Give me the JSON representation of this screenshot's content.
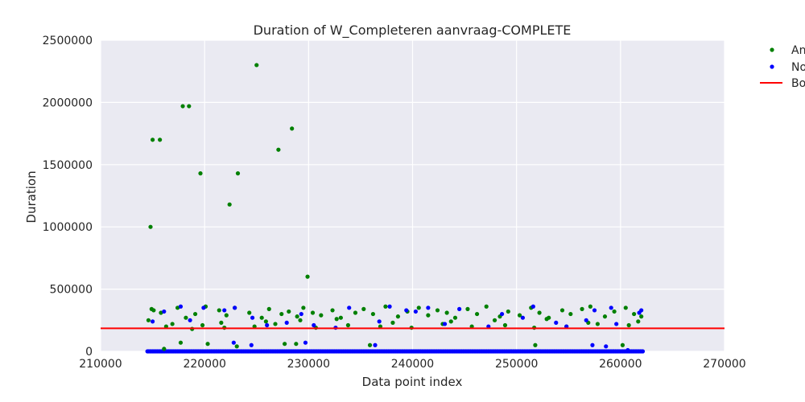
{
  "chart_data": {
    "type": "scatter",
    "title": "Duration of W_Completeren aanvraag-COMPLETE",
    "xlabel": "Data point index",
    "ylabel": "Duration",
    "xlim": [
      210000,
      270000
    ],
    "ylim": [
      0,
      2500000
    ],
    "xticks": [
      210000,
      220000,
      230000,
      240000,
      250000,
      260000,
      270000
    ],
    "yticks": [
      0,
      500000,
      1000000,
      1500000,
      2000000,
      2500000
    ],
    "xtick_labels": [
      "210000",
      "220000",
      "230000",
      "240000",
      "250000",
      "260000",
      "270000"
    ],
    "ytick_labels": [
      "0",
      "500000",
      "1000000",
      "1500000",
      "2000000",
      "2500000"
    ],
    "grid": true,
    "background": "#eaeaf2",
    "legend_position": "outside-right",
    "legend": [
      "An",
      "No",
      "Bo"
    ],
    "series": [
      {
        "name": "An",
        "color": "#008000",
        "marker": "point",
        "x": [
          214800,
          215000,
          215700,
          214900,
          217900,
          218500,
          219600,
          223200,
          222400,
          225000,
          227100,
          228400,
          229900,
          215100,
          215800,
          214600,
          216900,
          217400,
          218200,
          219100,
          220100,
          221400,
          222100,
          222900,
          224300,
          225500,
          226200,
          227400,
          228100,
          228900,
          229500,
          230400,
          231200,
          232300,
          233100,
          234500,
          235300,
          236200,
          237400,
          238600,
          239500,
          240600,
          241500,
          242400,
          243300,
          244100,
          245300,
          246200,
          247100,
          248400,
          249200,
          250300,
          251400,
          252200,
          253100,
          254400,
          255200,
          256300,
          257100,
          258500,
          259400,
          260500,
          261300,
          262000,
          216300,
          219800,
          221900,
          224800,
          226800,
          230700,
          233800,
          236900,
          239900,
          242900,
          245700,
          248900,
          251700,
          254800,
          257800,
          260800,
          217700,
          220300,
          223100,
          227700,
          228800,
          235900,
          251800,
          260200,
          216100,
          218800,
          221600,
          225900,
          229200,
          232700,
          238100,
          243700,
          247900,
          252900,
          256900,
          261700
        ],
        "y": [
          1000000,
          1700000,
          1700000,
          340000,
          1970000,
          1970000,
          1430000,
          1430000,
          1180000,
          2300000,
          1620000,
          1790000,
          600000,
          330000,
          310000,
          250000,
          220000,
          350000,
          270000,
          300000,
          360000,
          330000,
          290000,
          350000,
          310000,
          270000,
          340000,
          300000,
          320000,
          280000,
          350000,
          310000,
          290000,
          330000,
          270000,
          310000,
          340000,
          300000,
          360000,
          280000,
          320000,
          350000,
          290000,
          330000,
          310000,
          270000,
          340000,
          300000,
          360000,
          280000,
          320000,
          290000,
          350000,
          310000,
          270000,
          330000,
          300000,
          340000,
          360000,
          280000,
          320000,
          350000,
          300000,
          280000,
          200000,
          210000,
          190000,
          200000,
          220000,
          190000,
          210000,
          200000,
          190000,
          220000,
          200000,
          210000,
          190000,
          200000,
          220000,
          210000,
          70000,
          60000,
          40000,
          60000,
          60000,
          50000,
          50000,
          50000,
          20000,
          180000,
          230000,
          240000,
          250000,
          260000,
          230000,
          240000,
          250000,
          260000,
          230000,
          240000
        ]
      },
      {
        "name": "No",
        "color": "#0000ff",
        "marker": "point",
        "x": [
          215000,
          217700,
          219900,
          221900,
          224600,
          227900,
          230500,
          233900,
          237800,
          240300,
          241500,
          244500,
          248600,
          251600,
          254800,
          257500,
          259600,
          261800,
          216100,
          218600,
          222900,
          226000,
          229300,
          232600,
          236800,
          239400,
          243100,
          247300,
          250600,
          253800,
          256700,
          259100,
          262000,
          222800,
          224500,
          229700,
          236400,
          257300,
          258600,
          260700
        ],
        "y": [
          240000,
          360000,
          350000,
          330000,
          270000,
          230000,
          210000,
          350000,
          360000,
          320000,
          350000,
          340000,
          300000,
          360000,
          200000,
          330000,
          220000,
          310000,
          320000,
          250000,
          350000,
          210000,
          300000,
          190000,
          240000,
          330000,
          220000,
          200000,
          270000,
          230000,
          250000,
          350000,
          330000,
          70000,
          50000,
          70000,
          50000,
          50000,
          40000,
          10000
        ],
        "baseline": {
          "from": 214500,
          "to": 262200,
          "y": 0
        }
      },
      {
        "name": "Bo",
        "color": "#ff0000",
        "type": "line",
        "y": 185000
      }
    ]
  }
}
